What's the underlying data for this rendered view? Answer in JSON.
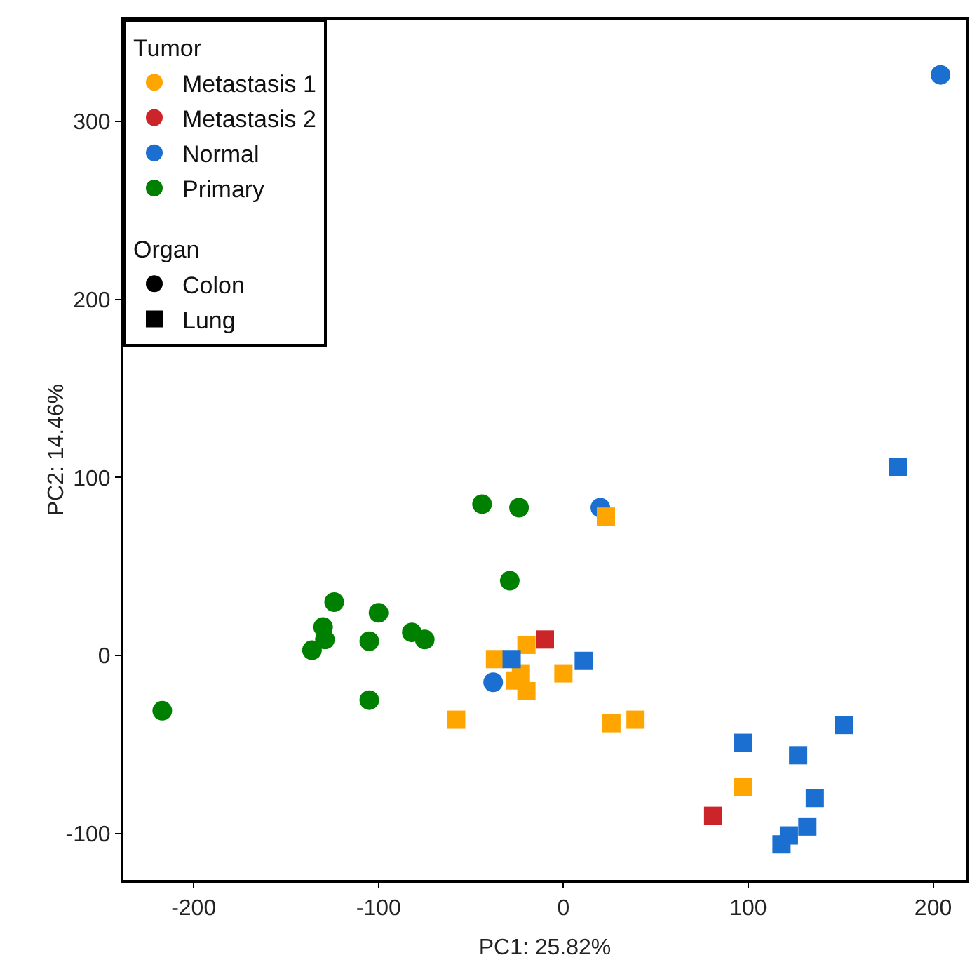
{
  "chart_data": {
    "type": "scatter",
    "xlabel": "PC1: 25.82%",
    "ylabel": "PC2: 14.46%",
    "legend_title": "Tumor",
    "annotations": [
      "Organ"
    ],
    "xlim": [
      -238,
      218
    ],
    "ylim": [
      -126,
      357
    ],
    "xticks": [
      -200,
      -100,
      0,
      100,
      200
    ],
    "yticks": [
      -100,
      0,
      100,
      200,
      300
    ],
    "grid": false,
    "legend": "top left",
    "series": [
      {
        "name": "Metastasis 1",
        "color": "#ffa500",
        "marker": "circle"
      },
      {
        "name": "Metastasis 2",
        "color": "#cc2529",
        "marker": "circle"
      },
      {
        "name": "Normal",
        "color": "#1a6fd1",
        "marker": "circle",
        "x": [
          204,
          20,
          -38
        ],
        "values": [
          326,
          83,
          -15
        ]
      },
      {
        "name": "Primary",
        "color": "#008000",
        "marker": "circle",
        "x": [
          -217,
          -124,
          -130,
          -129,
          -136,
          -100,
          -105,
          -82,
          -75,
          -105,
          -44,
          -24,
          -29
        ],
        "values": [
          -31,
          30,
          16,
          9,
          3,
          24,
          8,
          13,
          9,
          -25,
          85,
          83,
          42
        ]
      },
      {
        "color": "#ffa500",
        "marker": "square",
        "x": [
          23,
          -20,
          -37,
          -23,
          -26,
          -20,
          0,
          26,
          39,
          -58,
          97
        ],
        "values": [
          78,
          6,
          -2,
          -10,
          -14,
          -20,
          -10,
          -38,
          -36,
          -36,
          -74
        ]
      },
      {
        "color": "#cc2529",
        "marker": "square",
        "x": [
          -10,
          81
        ],
        "values": [
          9,
          -90
        ]
      },
      {
        "color": "#1a6fd1",
        "marker": "square",
        "x": [
          -28,
          11,
          181,
          152,
          97,
          127,
          136,
          132,
          122,
          118
        ],
        "values": [
          -2,
          -3,
          106,
          -39,
          -49,
          -56,
          -80,
          -96,
          -101,
          -106
        ]
      },
      {
        "name": "Colon",
        "color": "#000000",
        "marker": "circle"
      },
      {
        "name": "Lung",
        "color": "#000000",
        "marker": "square"
      }
    ]
  }
}
